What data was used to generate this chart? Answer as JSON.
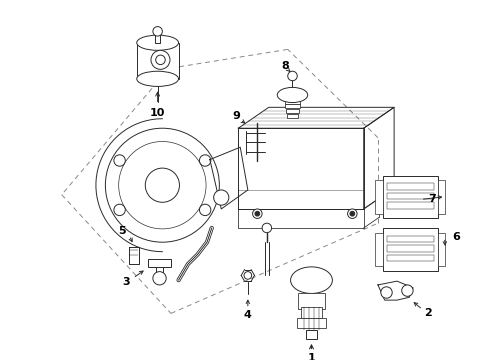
{
  "bg_color": "#ffffff",
  "line_color": "#2a2a2a",
  "dashed_color": "#888888",
  "label_color": "#000000",
  "lw": 0.7,
  "fig_w": 4.9,
  "fig_h": 3.6,
  "dpi": 100
}
